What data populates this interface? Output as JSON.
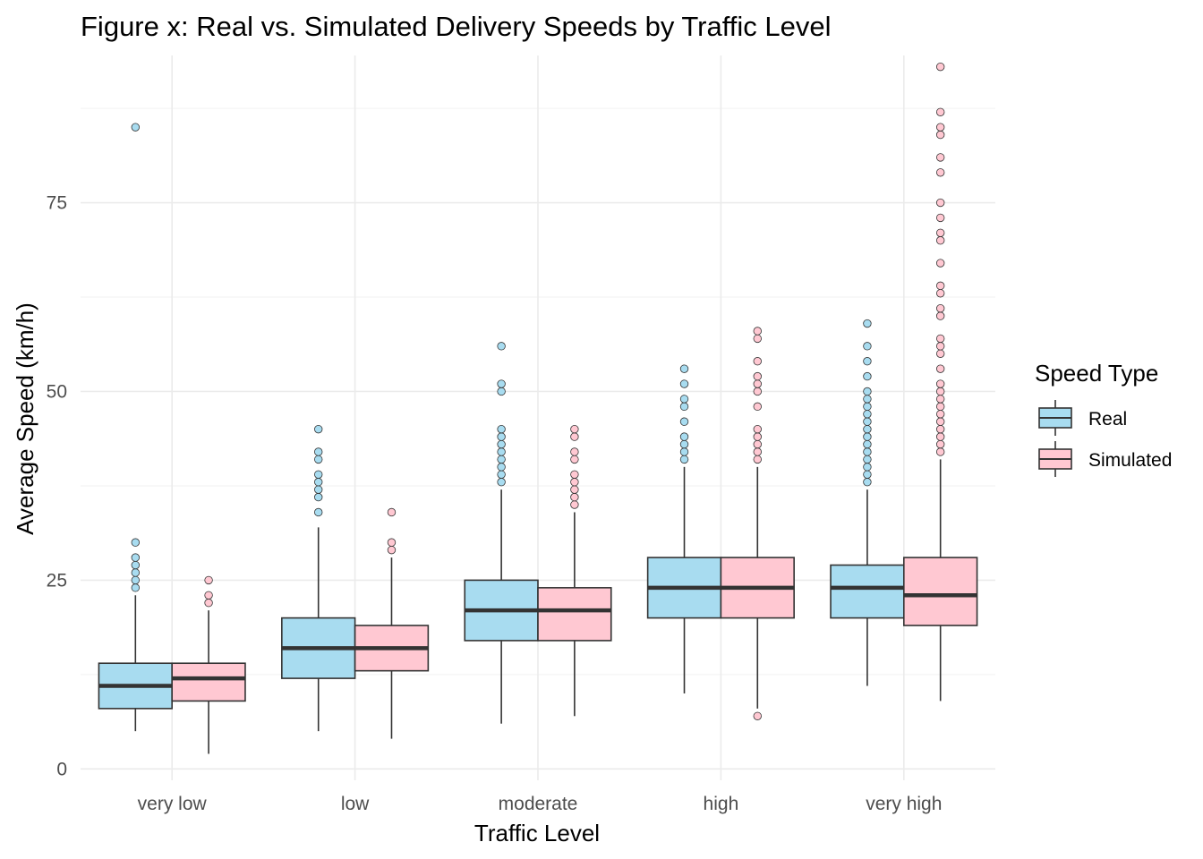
{
  "chart_data": {
    "type": "boxplot",
    "title": "Figure x: Real vs. Simulated Delivery Speeds by Traffic Level",
    "xlabel": "Traffic Level",
    "ylabel": "Average Speed (km/h)",
    "categories": [
      "very low",
      "low",
      "moderate",
      "high",
      "very high"
    ],
    "ylim": [
      -1.5,
      94.5
    ],
    "yticks": [
      0,
      25,
      50,
      75
    ],
    "grid": true,
    "legend": {
      "title": "Speed Type",
      "position": "right",
      "entries": [
        "Real",
        "Simulated"
      ]
    },
    "series": [
      {
        "name": "Real",
        "color": "#a8dcf0",
        "boxes": [
          {
            "whisker_low": 5,
            "q1": 8,
            "median": 11,
            "q3": 14,
            "whisker_high": 23,
            "outliers": [
              24,
              25,
              26,
              27,
              28,
              30,
              85
            ]
          },
          {
            "whisker_low": 5,
            "q1": 12,
            "median": 16,
            "q3": 20,
            "whisker_high": 32,
            "outliers": [
              34,
              36,
              37,
              38,
              39,
              41,
              42,
              45
            ]
          },
          {
            "whisker_low": 6,
            "q1": 17,
            "median": 21,
            "q3": 25,
            "whisker_high": 37,
            "outliers": [
              38,
              39,
              40,
              41,
              42,
              43,
              44,
              45,
              50,
              51,
              56
            ]
          },
          {
            "whisker_low": 10,
            "q1": 20,
            "median": 24,
            "q3": 28,
            "whisker_high": 40,
            "outliers": [
              41,
              42,
              43,
              44,
              46,
              48,
              49,
              51,
              53
            ]
          },
          {
            "whisker_low": 11,
            "q1": 20,
            "median": 24,
            "q3": 27,
            "whisker_high": 37,
            "outliers": [
              38,
              39,
              40,
              41,
              42,
              43,
              44,
              45,
              46,
              47,
              48,
              49,
              50,
              52,
              54,
              56,
              59
            ]
          }
        ]
      },
      {
        "name": "Simulated",
        "color": "#ffc8d2",
        "boxes": [
          {
            "whisker_low": 2,
            "q1": 9,
            "median": 12,
            "q3": 14,
            "whisker_high": 21,
            "outliers": [
              22,
              23,
              25
            ]
          },
          {
            "whisker_low": 4,
            "q1": 13,
            "median": 16,
            "q3": 19,
            "whisker_high": 28,
            "outliers": [
              29,
              30,
              34
            ]
          },
          {
            "whisker_low": 7,
            "q1": 17,
            "median": 21,
            "q3": 24,
            "whisker_high": 34,
            "outliers": [
              35,
              36,
              37,
              38,
              39,
              41,
              42,
              44,
              45
            ]
          },
          {
            "whisker_low": 8,
            "q1": 20,
            "median": 24,
            "q3": 28,
            "whisker_high": 40,
            "outliers": [
              7,
              41,
              42,
              43,
              44,
              45,
              48,
              50,
              51,
              52,
              54,
              57,
              58
            ]
          },
          {
            "whisker_low": 9,
            "q1": 19,
            "median": 23,
            "q3": 28,
            "whisker_high": 41,
            "outliers": [
              42,
              43,
              44,
              45,
              46,
              47,
              48,
              49,
              50,
              51,
              53,
              55,
              56,
              57,
              60,
              61,
              63,
              64,
              67,
              70,
              71,
              73,
              75,
              79,
              81,
              84,
              85,
              87,
              93
            ]
          }
        ]
      }
    ]
  }
}
